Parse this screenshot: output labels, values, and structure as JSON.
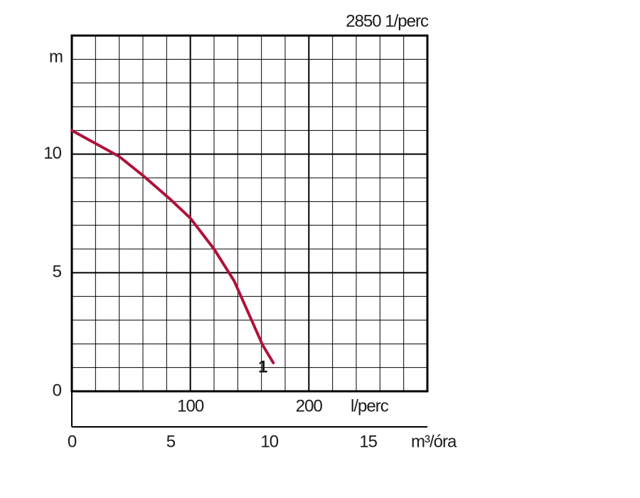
{
  "chart_data": {
    "type": "line",
    "title": "2850 1/perc",
    "y_label": "m",
    "x_label": "l/perc",
    "x2_label": "m³/óra",
    "xlim": [
      0,
      300
    ],
    "xticks": [
      100,
      200
    ],
    "x_minor_ticks": [
      20,
      40,
      60,
      80,
      120,
      140,
      160,
      180,
      220,
      240,
      260,
      280
    ],
    "ylim": [
      0,
      15
    ],
    "yticks": [
      0,
      5,
      10
    ],
    "y_minor_ticks": [
      1,
      2,
      3,
      4,
      6,
      7,
      8,
      9,
      11,
      12,
      13,
      14
    ],
    "x2lim": [
      0,
      18
    ],
    "x2ticks": [
      0,
      5,
      10,
      15
    ],
    "grid": true,
    "series": [
      {
        "name": "1",
        "color": "#b0113a",
        "x": [
          0,
          40,
          60,
          83,
          100,
          120,
          137,
          149,
          161,
          170
        ],
        "values": [
          11.0,
          9.9,
          9.1,
          8.1,
          7.3,
          6.0,
          4.65,
          3.3,
          1.95,
          1.2
        ]
      }
    ]
  }
}
